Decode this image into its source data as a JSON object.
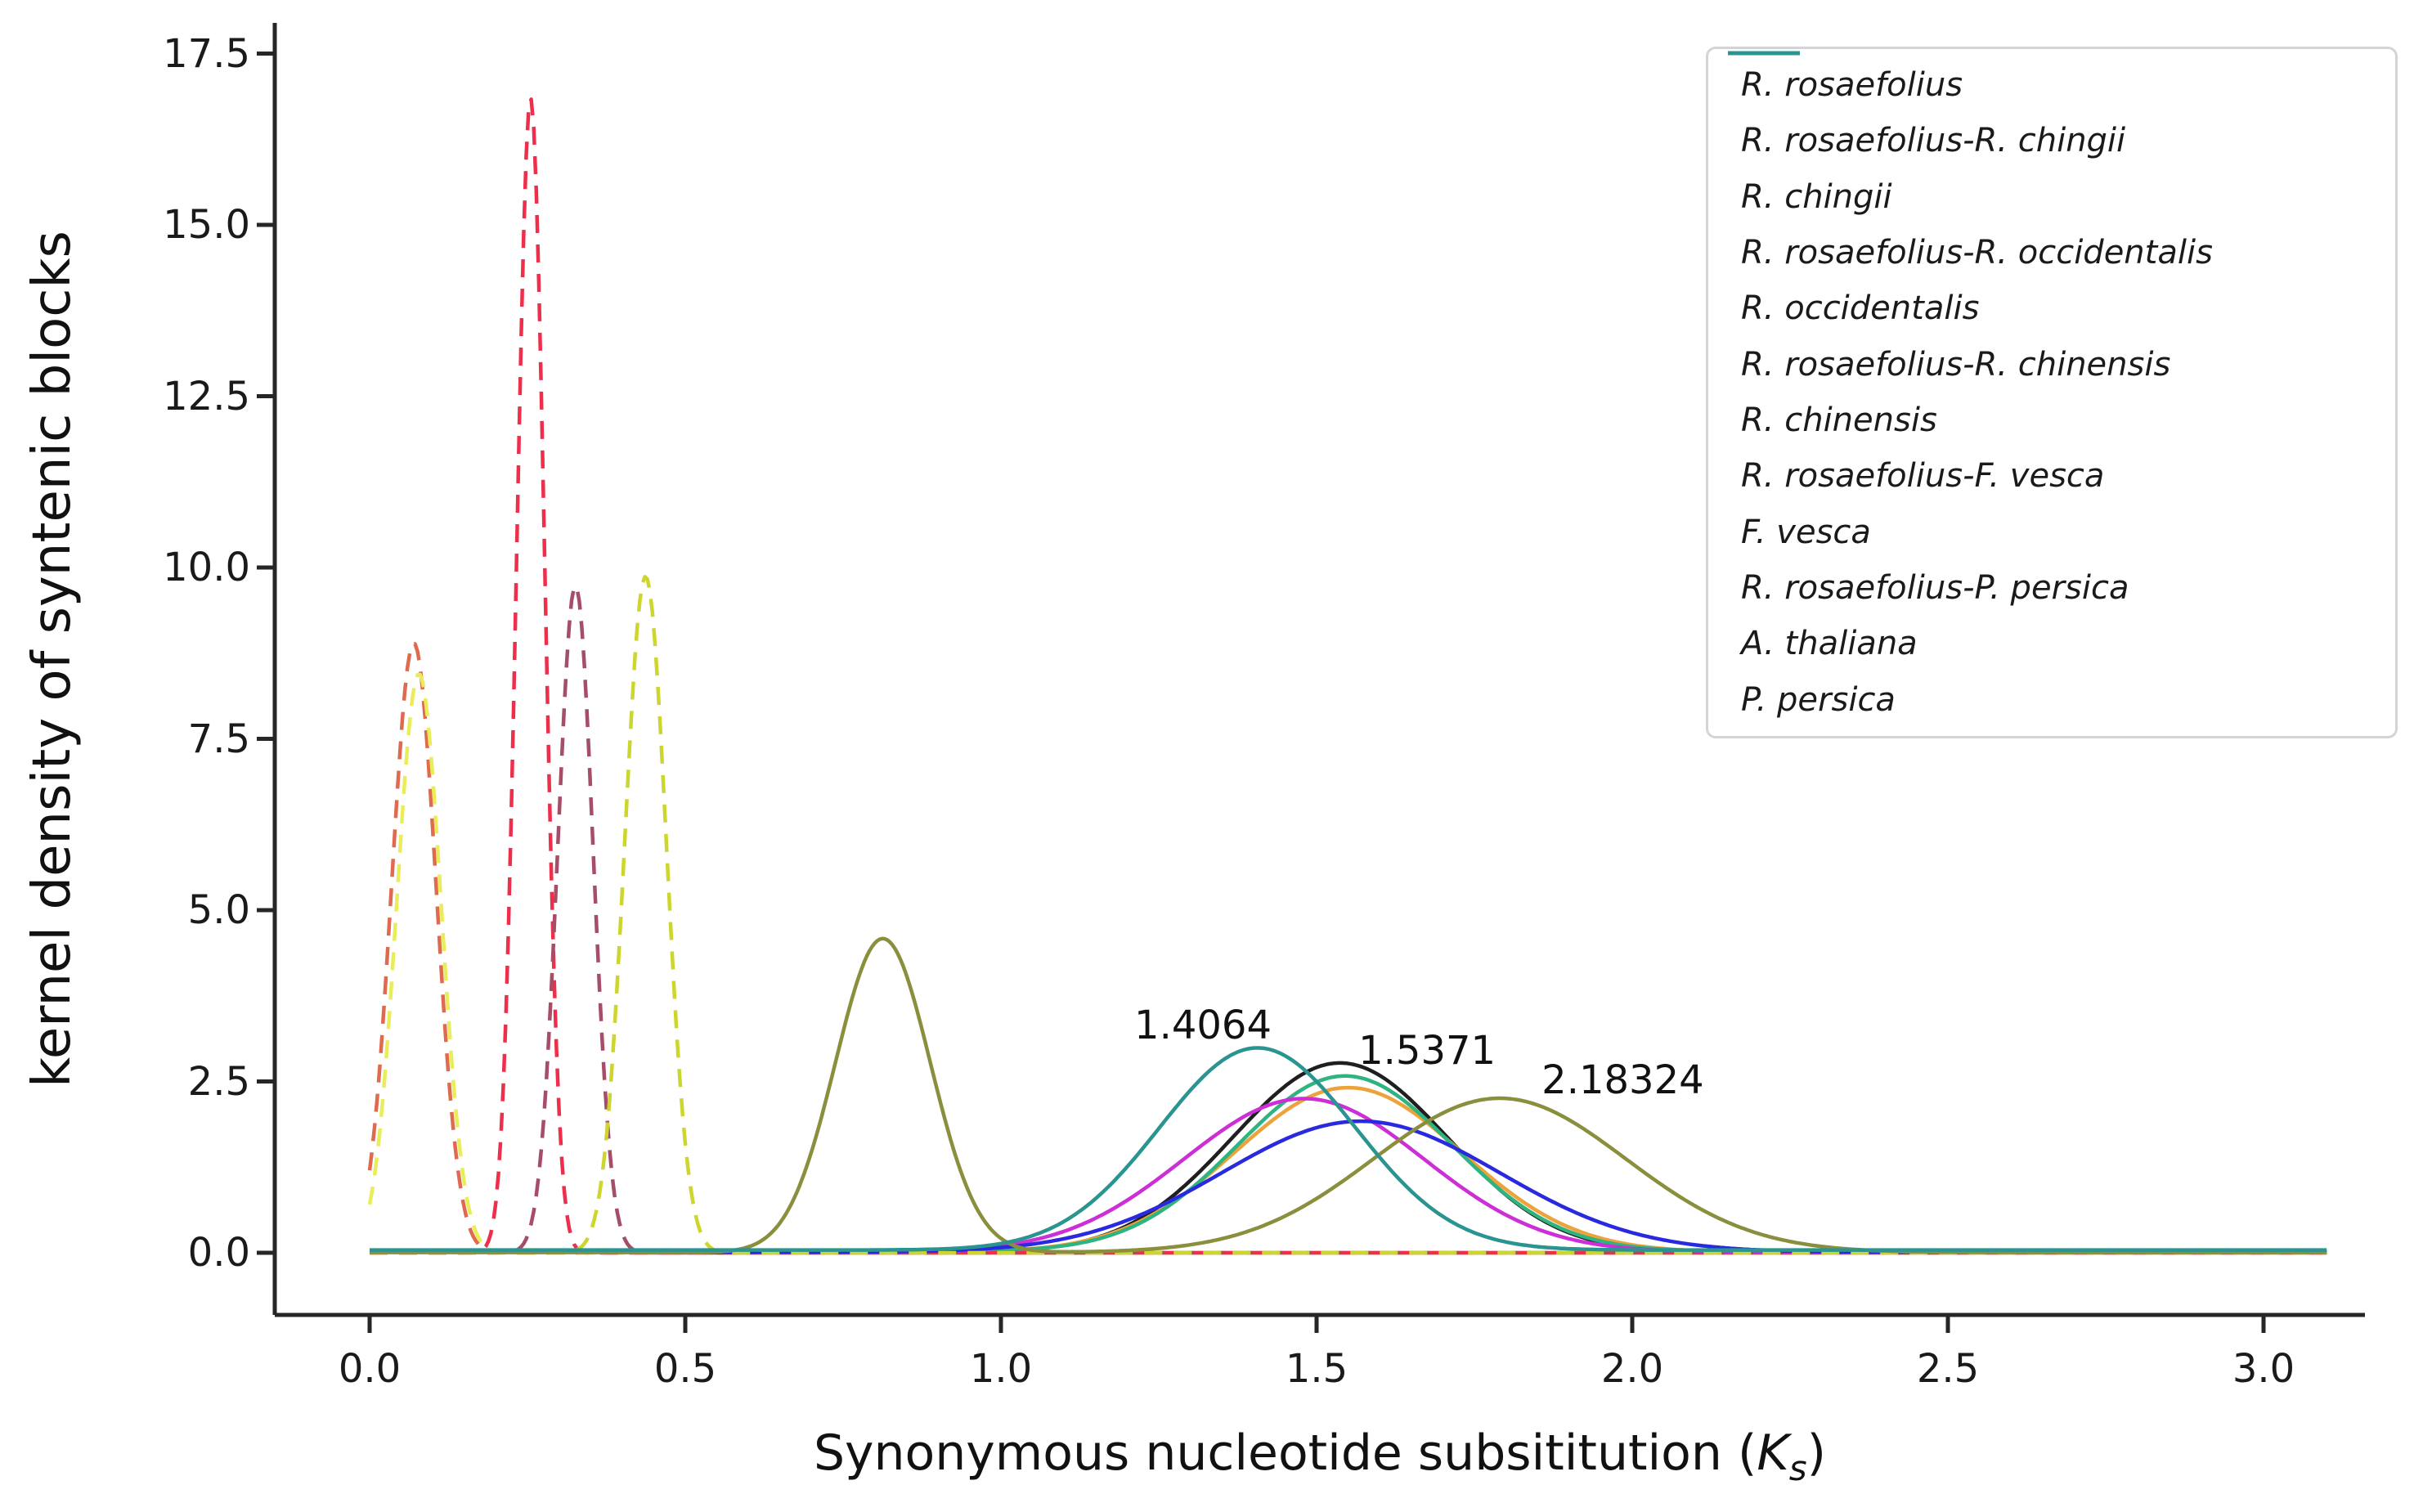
{
  "figure": {
    "background": "#ffffff",
    "spine_color": "#262626"
  },
  "chart_data": {
    "type": "line",
    "subtype": "kernel-density",
    "title": "",
    "ylabel": "kernel density of syntenic blocks",
    "xlabel_prefix": "Synonymous nucleotide subsititution (",
    "xlabel_k": "K",
    "xlabel_sub": "s",
    "xlabel_suffix": ")",
    "x_ticks": [
      "0.0",
      "0.5",
      "1.0",
      "1.5",
      "2.0",
      "2.5",
      "3.0"
    ],
    "y_ticks": [
      "0.0",
      "2.5",
      "5.0",
      "7.5",
      "10.0",
      "12.5",
      "15.0",
      "17.5"
    ],
    "xlim": [
      -0.15,
      3.15
    ],
    "ylim": [
      -0.9,
      17.95
    ],
    "x_range_sampled": [
      0.0,
      3.1
    ],
    "grid": false,
    "legend_position": "upper right",
    "series": [
      {
        "name": "R. rosaefolius",
        "color": "#1f1f1f",
        "dash": false,
        "peaks": [
          {
            "mu": 1.5371,
            "sigma": 0.17,
            "height": 2.76
          }
        ],
        "baseline": 0.01
      },
      {
        "name": "R. rosaefolius-R. chingii",
        "color": "#e06a50",
        "dash": true,
        "peaks": [
          {
            "mu": 0.07,
            "sigma": 0.035,
            "height": 8.9
          }
        ],
        "baseline": 0.0
      },
      {
        "name": "R. chingii",
        "color": "#eda33b",
        "dash": false,
        "peaks": [
          {
            "mu": 1.55,
            "sigma": 0.18,
            "height": 2.4
          }
        ],
        "baseline": 0.01
      },
      {
        "name": "R. rosaefolius-R. occidentalis",
        "color": "#e9ed59",
        "dash": true,
        "peaks": [
          {
            "mu": 0.078,
            "sigma": 0.035,
            "height": 8.45
          }
        ],
        "baseline": 0.0
      },
      {
        "name": "R. occidentalis",
        "color": "#2fb380",
        "dash": false,
        "peaks": [
          {
            "mu": 1.545,
            "sigma": 0.17,
            "height": 2.56
          }
        ],
        "baseline": 0.02
      },
      {
        "name": "R. rosaefolius-R. chinensis",
        "color": "#ed2f4c",
        "dash": true,
        "peaks": [
          {
            "mu": 0.255,
            "sigma": 0.022,
            "height": 16.85
          }
        ],
        "baseline": 0.0
      },
      {
        "name": "R. chinensis",
        "color": "#cc2fd6",
        "dash": false,
        "peaks": [
          {
            "mu": 1.48,
            "sigma": 0.19,
            "height": 2.24
          }
        ],
        "baseline": 0.01
      },
      {
        "name": "R. rosaefolius-F. vesca",
        "color": "#a64d68",
        "dash": true,
        "peaks": [
          {
            "mu": 0.326,
            "sigma": 0.028,
            "height": 9.74
          }
        ],
        "baseline": 0.0
      },
      {
        "name": "F. vesca",
        "color": "#2929e0",
        "dash": false,
        "peaks": [
          {
            "mu": 1.57,
            "sigma": 0.22,
            "height": 1.91
          }
        ],
        "baseline": 0.01
      },
      {
        "name": "R. rosaefolius-P. persica",
        "color": "#ccd62e",
        "dash": true,
        "peaks": [
          {
            "mu": 0.437,
            "sigma": 0.033,
            "height": 9.87
          }
        ],
        "baseline": 0.0
      },
      {
        "name": "A. thaliana",
        "color": "#8a8f3d",
        "dash": false,
        "peaks": [
          {
            "mu": 0.813,
            "sigma": 0.075,
            "height": 4.58
          },
          {
            "mu": 1.79,
            "sigma": 0.2,
            "height": 2.25
          }
        ],
        "baseline": 0.005
      },
      {
        "name": "P. persica",
        "color": "#2a9490",
        "dash": false,
        "peaks": [
          {
            "mu": 1.4064,
            "sigma": 0.155,
            "height": 2.95
          }
        ],
        "baseline": 0.04
      }
    ],
    "annotations": [
      {
        "text": "1.4064",
        "x": 1.32,
        "y": 3.32
      },
      {
        "text": "1.5371",
        "x": 1.675,
        "y": 2.95
      },
      {
        "text": "2.18324",
        "x": 1.985,
        "y": 2.52
      }
    ]
  }
}
